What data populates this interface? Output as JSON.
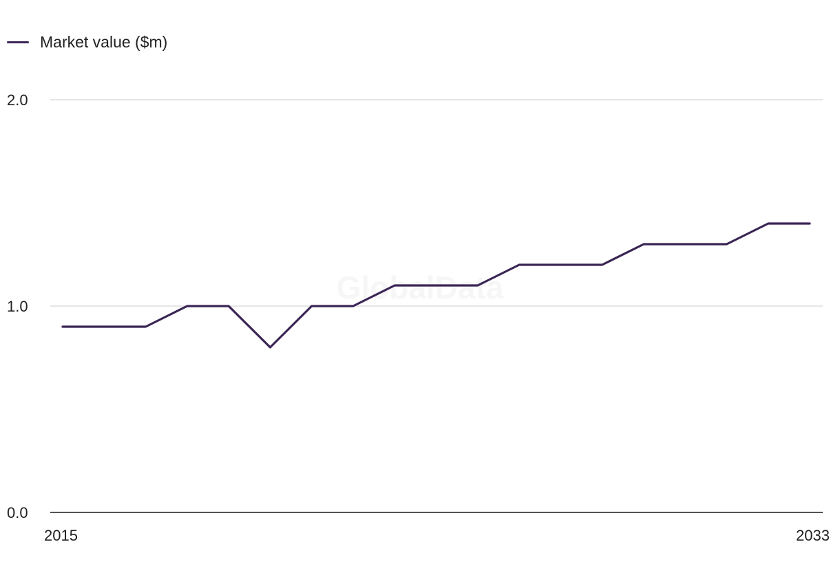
{
  "chart_data": {
    "type": "line",
    "x": [
      2015,
      2016,
      2017,
      2018,
      2019,
      2020,
      2021,
      2022,
      2023,
      2024,
      2025,
      2026,
      2027,
      2028,
      2029,
      2030,
      2031,
      2032,
      2033
    ],
    "series": [
      {
        "name": "Market value ($m)",
        "color": "#3a2555",
        "values": [
          0.9,
          0.9,
          0.9,
          1.0,
          1.0,
          0.8,
          1.0,
          1.0,
          1.1,
          1.1,
          1.1,
          1.2,
          1.2,
          1.2,
          1.3,
          1.3,
          1.3,
          1.4,
          1.4
        ]
      }
    ],
    "x_tick_labels": [
      "2015",
      "2033"
    ],
    "y_ticks": [
      "0.0",
      "1.0",
      "2.0"
    ],
    "ylim": [
      0,
      2
    ],
    "xlim": [
      2015,
      2033
    ],
    "grid": true,
    "legend_position": "top-left",
    "watermark": "GlobalData"
  }
}
